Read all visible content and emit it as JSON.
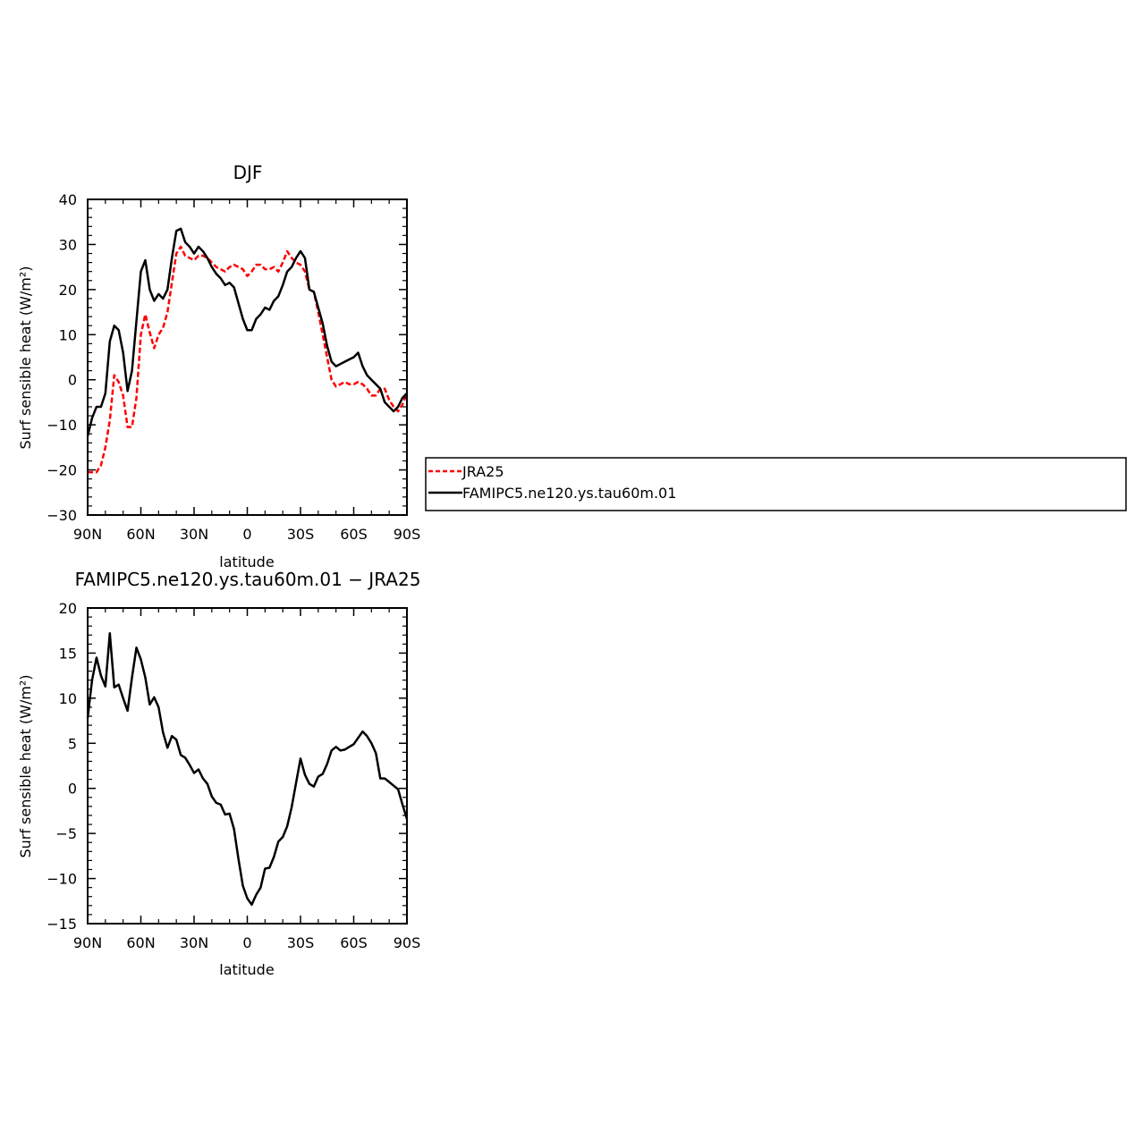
{
  "chart_data": [
    {
      "type": "line",
      "title": "DJF",
      "xlabel": "latitude",
      "ylabel": "Surf sensible heat (W/m²)",
      "xlim": [
        90,
        -90
      ],
      "ylim": [
        -30,
        40
      ],
      "x_tick_values": [
        90,
        60,
        30,
        0,
        -30,
        -60,
        -90
      ],
      "x_tick_labels": [
        "90N",
        "60N",
        "30N",
        "0",
        "30S",
        "60S",
        "90S"
      ],
      "y_tick_values": [
        -30,
        -20,
        -10,
        0,
        10,
        20,
        30,
        40
      ],
      "y_tick_labels": [
        "−30",
        "−20",
        "−10",
        "0",
        "10",
        "20",
        "30",
        "40"
      ],
      "grid": false,
      "legend_placement": "right",
      "series": [
        {
          "name": "JRA25",
          "color": "#ff0000",
          "style": "dashed",
          "x": [
            90,
            87.5,
            85,
            82.5,
            80,
            77.5,
            75,
            72.5,
            70,
            67.5,
            65,
            62.5,
            60,
            57.5,
            55,
            52.5,
            50,
            47.5,
            45,
            42.5,
            40,
            37.5,
            35,
            32.5,
            30,
            27.5,
            25,
            22.5,
            20,
            17.5,
            15,
            12.5,
            10,
            7.5,
            5,
            2.5,
            0,
            -2.5,
            -5,
            -7.5,
            -10,
            -12.5,
            -15,
            -17.5,
            -20,
            -22.5,
            -25,
            -27.5,
            -30,
            -32.5,
            -35,
            -37.5,
            -40,
            -42.5,
            -45,
            -47.5,
            -50,
            -52.5,
            -55,
            -57.5,
            -60,
            -62.5,
            -65,
            -67.5,
            -70,
            -72.5,
            -75,
            -77.5,
            -80,
            -82.5,
            -85,
            -87.5,
            -90
          ],
          "y": [
            -20.5,
            -20.5,
            -20.5,
            -19,
            -15,
            -9,
            1,
            -0.5,
            -3.5,
            -10.5,
            -10.5,
            -4,
            10,
            14.5,
            10.5,
            7,
            10,
            11.5,
            15,
            21.5,
            28,
            29.5,
            27.5,
            27,
            26.5,
            27.5,
            27.5,
            27,
            26,
            25,
            24.5,
            24,
            25,
            25.5,
            25,
            24.5,
            23,
            24,
            25.5,
            25.5,
            24.5,
            24.5,
            25,
            24,
            26,
            28.5,
            27,
            26,
            25.5,
            24,
            20,
            19.5,
            15,
            10,
            5,
            0,
            -1.5,
            -1,
            -0.5,
            -1,
            -1,
            -0.5,
            -1,
            -2,
            -3.5,
            -3.5,
            -2,
            -2,
            -4.5,
            -6,
            -7,
            -5.5,
            -3
          ]
        },
        {
          "name": "FAMIPC5.ne120.ys.tau60m.01",
          "color": "#000000",
          "style": "solid",
          "x": [
            90,
            87.5,
            85,
            82.5,
            80,
            77.5,
            75,
            72.5,
            70,
            67.5,
            65,
            62.5,
            60,
            57.5,
            55,
            52.5,
            50,
            47.5,
            45,
            42.5,
            40,
            37.5,
            35,
            32.5,
            30,
            27.5,
            25,
            22.5,
            20,
            17.5,
            15,
            12.5,
            10,
            7.5,
            5,
            2.5,
            0,
            -2.5,
            -5,
            -7.5,
            -10,
            -12.5,
            -15,
            -17.5,
            -20,
            -22.5,
            -25,
            -27.5,
            -30,
            -32.5,
            -35,
            -37.5,
            -40,
            -42.5,
            -45,
            -47.5,
            -50,
            -52.5,
            -55,
            -57.5,
            -60,
            -62.5,
            -65,
            -67.5,
            -70,
            -72.5,
            -75,
            -77.5,
            -80,
            -82.5,
            -85,
            -87.5,
            -90
          ],
          "y": [
            -12.5,
            -8.5,
            -6,
            -6,
            -3,
            8.5,
            12,
            11,
            6,
            -2.5,
            2,
            13,
            24,
            26.5,
            20,
            17.5,
            19,
            18,
            20,
            27,
            33,
            33.5,
            30.5,
            29.5,
            28,
            29.5,
            28.5,
            27,
            25,
            23.5,
            22.5,
            21,
            21.5,
            20.5,
            17,
            13.5,
            11,
            11,
            13.5,
            14.5,
            16,
            15.5,
            17.5,
            18.5,
            21,
            24,
            25,
            27,
            28.5,
            27,
            20,
            19.5,
            16,
            12.5,
            7.5,
            4,
            3,
            3.5,
            4,
            4.5,
            5,
            6,
            3,
            1,
            0,
            -1,
            -2,
            -5,
            -6,
            -7,
            -6,
            -4,
            -3
          ]
        }
      ]
    },
    {
      "type": "line",
      "title": "FAMIPC5.ne120.ys.tau60m.01 − JRA25",
      "xlabel": "latitude",
      "ylabel": "Surf sensible heat (W/m²)",
      "xlim": [
        90,
        -90
      ],
      "ylim": [
        -15,
        20
      ],
      "x_tick_values": [
        90,
        60,
        30,
        0,
        -30,
        -60,
        -90
      ],
      "x_tick_labels": [
        "90N",
        "60N",
        "30N",
        "0",
        "30S",
        "60S",
        "90S"
      ],
      "y_tick_values": [
        -15,
        -10,
        -5,
        0,
        5,
        10,
        15,
        20
      ],
      "y_tick_labels": [
        "−15",
        "−10",
        "−5",
        "0",
        "5",
        "10",
        "15",
        "20"
      ],
      "grid": false,
      "series": [
        {
          "color": "#000000",
          "style": "solid",
          "x": [
            90,
            87.5,
            85,
            82.5,
            80,
            77.5,
            75,
            72.5,
            70,
            67.5,
            65,
            62.5,
            60,
            57.5,
            55,
            52.5,
            50,
            47.5,
            45,
            42.5,
            40,
            37.5,
            35,
            32.5,
            30,
            27.5,
            25,
            22.5,
            20,
            17.5,
            15,
            12.5,
            10,
            7.5,
            5,
            2.5,
            0,
            -2.5,
            -5,
            -7.5,
            -10,
            -12.5,
            -15,
            -17.5,
            -20,
            -22.5,
            -25,
            -27.5,
            -30,
            -32.5,
            -35,
            -37.5,
            -40,
            -42.5,
            -45,
            -47.5,
            -50,
            -52.5,
            -55,
            -57.5,
            -60,
            -62.5,
            -65,
            -67.5,
            -70,
            -72.5,
            -75,
            -77.5,
            -80,
            -82.5,
            -85,
            -87.5,
            -90
          ],
          "y": [
            7.8,
            12,
            14.5,
            12.5,
            11.3,
            17.2,
            11.2,
            11.5,
            10,
            8.6,
            12.3,
            15.6,
            14.3,
            12.3,
            9.3,
            10.1,
            9,
            6.2,
            4.5,
            5.8,
            5.4,
            3.7,
            3.4,
            2.6,
            1.7,
            2.1,
            1.1,
            0.5,
            -0.9,
            -1.6,
            -1.8,
            -2.9,
            -2.8,
            -4.5,
            -7.8,
            -10.8,
            -12.2,
            -12.9,
            -11.8,
            -11,
            -8.9,
            -8.8,
            -7.6,
            -5.9,
            -5.4,
            -4.2,
            -2.1,
            0.6,
            3.3,
            1.5,
            0.5,
            0.2,
            1.3,
            1.6,
            2.7,
            4.2,
            4.6,
            4.2,
            4.3,
            4.6,
            4.9,
            5.6,
            6.3,
            5.8,
            5,
            3.9,
            1.1,
            1.1,
            0.7,
            0.3,
            -0.1,
            -1.8,
            -3.4
          ]
        }
      ]
    }
  ]
}
